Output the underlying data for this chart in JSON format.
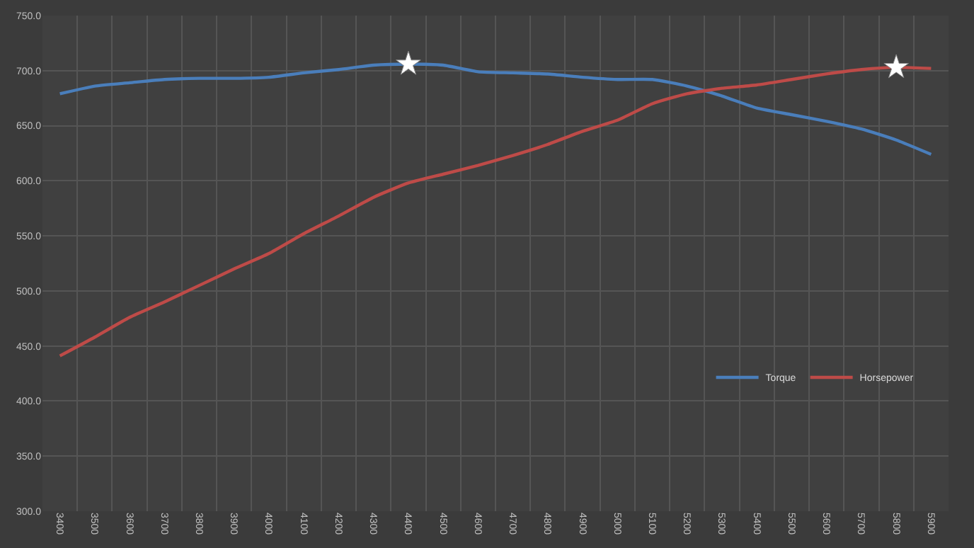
{
  "chart_data": {
    "type": "line",
    "categories": [
      "3400",
      "3500",
      "3600",
      "3700",
      "3800",
      "3900",
      "4000",
      "4100",
      "4200",
      "4300",
      "4400",
      "4500",
      "4600",
      "4700",
      "4800",
      "4900",
      "5000",
      "5100",
      "5200",
      "5300",
      "5400",
      "5500",
      "5600",
      "5700",
      "5800",
      "5900"
    ],
    "series": [
      {
        "name": "Torque",
        "color": "#4a7ebb",
        "values": [
          679,
          686,
          689,
          692,
          693,
          693,
          694,
          698,
          701,
          705,
          706,
          705,
          699,
          698,
          697,
          694,
          692,
          692,
          686,
          677,
          666,
          660,
          654,
          647,
          637,
          624
        ]
      },
      {
        "name": "Horsepower",
        "color": "#be4b48",
        "values": [
          441,
          458,
          476,
          490,
          505,
          520,
          534,
          552,
          568,
          585,
          598,
          606,
          614,
          623,
          633,
          645,
          655,
          670,
          679,
          684,
          687,
          692,
          697,
          701,
          703,
          702
        ]
      },
      {
        "type": "scatter",
        "marker": "star",
        "color": "#ffffff",
        "values": [
          null,
          null,
          null,
          null,
          null,
          null,
          null,
          null,
          null,
          null,
          706,
          null,
          null,
          null,
          null,
          null,
          null,
          null,
          null,
          null,
          null,
          null,
          null,
          null,
          703,
          null
        ]
      }
    ],
    "ylim": [
      300,
      750
    ],
    "yticks": [
      {
        "value": 300,
        "label": "300.0"
      },
      {
        "value": 350,
        "label": "350.0"
      },
      {
        "value": 400,
        "label": "400.0"
      },
      {
        "value": 450,
        "label": "450.0"
      },
      {
        "value": 500,
        "label": "500.0"
      },
      {
        "value": 550,
        "label": "550.0"
      },
      {
        "value": 600,
        "label": "600.0"
      },
      {
        "value": 650,
        "label": "650.0"
      },
      {
        "value": 700,
        "label": "700.0"
      },
      {
        "value": 750,
        "label": "750.0"
      }
    ],
    "grid": true,
    "legend": "bottom right",
    "marker": "none",
    "line_style": "solid"
  }
}
